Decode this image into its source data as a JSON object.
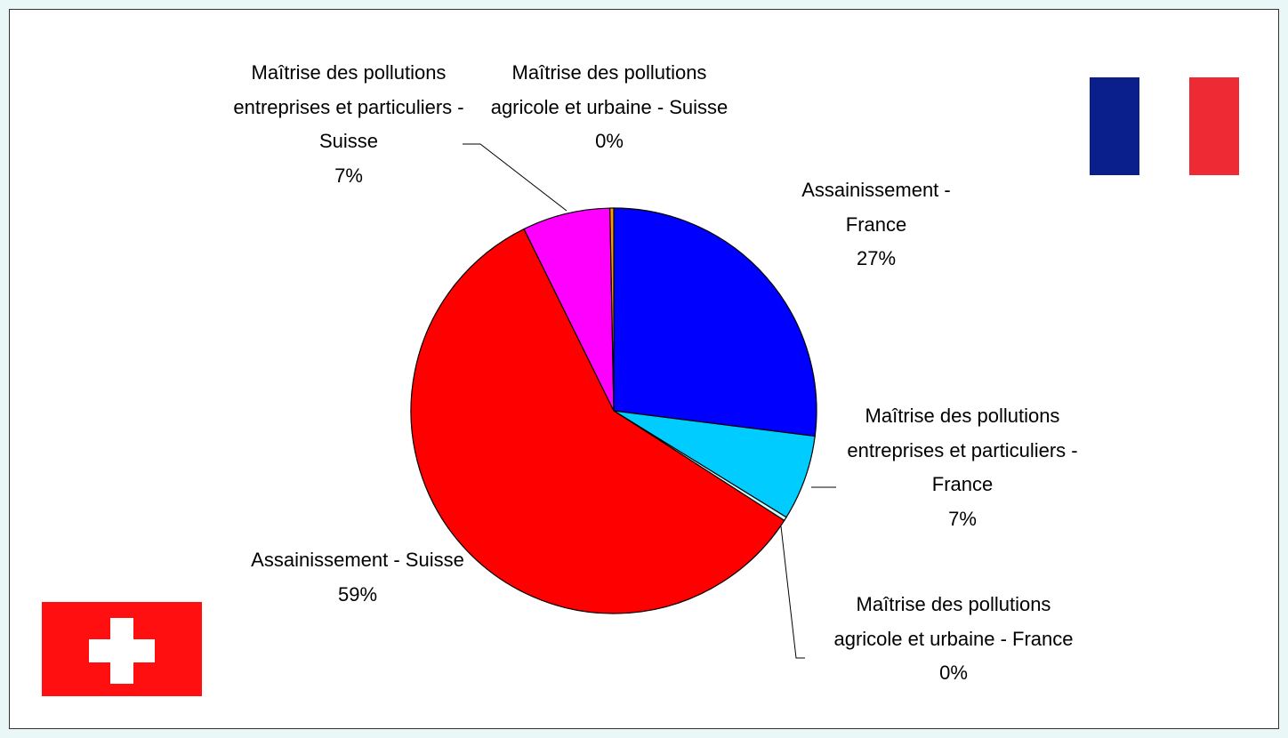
{
  "chart_data": {
    "type": "pie",
    "categories": [
      "Assainissement - France",
      "Maîtrise des pollutions entreprises et particuliers - France",
      "Maîtrise des pollutions agricole et urbaine - France",
      "Assainissement - Suisse",
      "Maîtrise des pollutions entreprises et particuliers - Suisse",
      "Maîtrise des pollutions agricole et urbaine - Suisse"
    ],
    "values": [
      27.0,
      6.8,
      0.3,
      58.6,
      7.0,
      0.3
    ],
    "value_labels": [
      "27%",
      "7%",
      "0%",
      "59%",
      "7%",
      "0%"
    ],
    "colors": [
      "#0000ff",
      "#00ccff",
      "#ccffff",
      "#ff0000",
      "#ff00ff",
      "#ff9900"
    ]
  }
}
